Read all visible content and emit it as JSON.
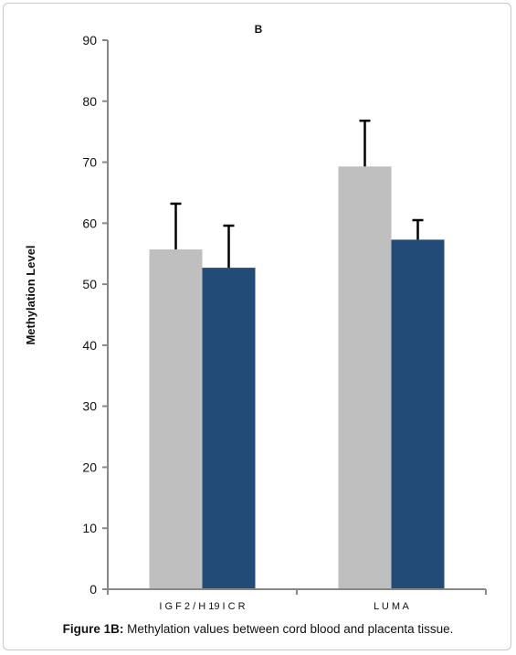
{
  "caption": {
    "lead": "Figure 1B:",
    "text": " Methylation values between cord blood and placenta tissue."
  },
  "chart_data": {
    "type": "bar",
    "title": "B",
    "xlabel": "",
    "ylabel": "Methylation Level",
    "ylim": [
      0,
      90
    ],
    "yticks": [
      0,
      10,
      20,
      30,
      40,
      50,
      60,
      70,
      80,
      90
    ],
    "categories": [
      "I G F 2 / H 19  I C R",
      "L U M A"
    ],
    "series": [
      {
        "color": "#bfbfbf",
        "values": [
          55.7,
          69.3
        ],
        "errors": [
          7.5,
          7.5
        ]
      },
      {
        "color": "#234b78",
        "values": [
          52.7,
          57.3
        ],
        "errors": [
          6.9,
          3.2
        ]
      }
    ],
    "grid": false,
    "legend": "none"
  }
}
